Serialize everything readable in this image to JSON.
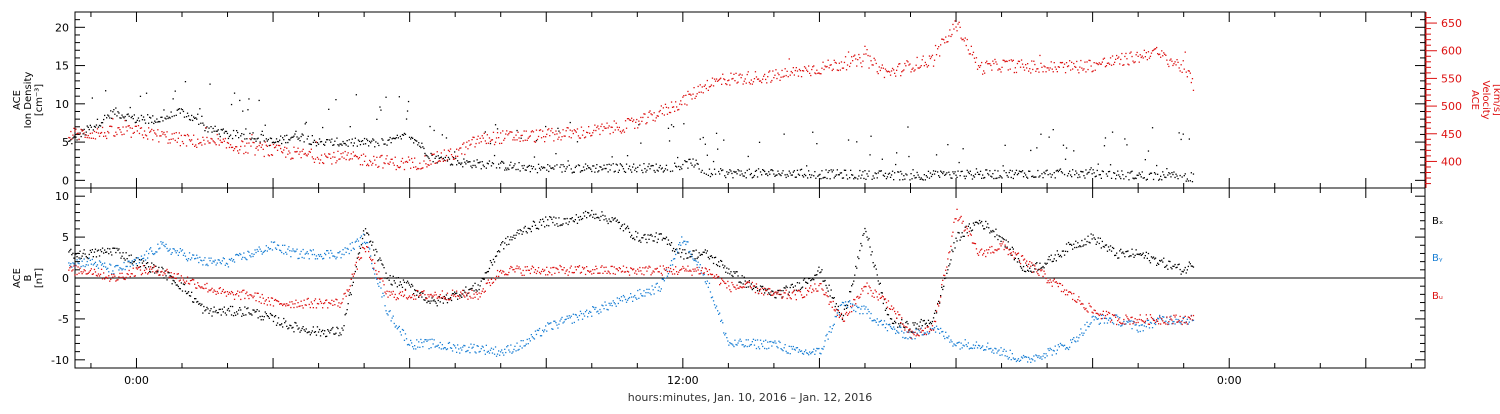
{
  "chart_data": [
    {
      "type": "scatter",
      "panel": "top",
      "left_axis": {
        "label_lines": [
          "ACE",
          "Ion Density",
          "[cm⁻³]"
        ],
        "range": [
          -1,
          22
        ],
        "ticks": [
          0,
          5,
          10,
          15,
          20
        ],
        "color": "#000000"
      },
      "right_axis": {
        "label_lines": [
          "ACE",
          "Velocity",
          "[km/s]"
        ],
        "range": [
          352,
          670
        ],
        "ticks": [
          400,
          450,
          500,
          550,
          600,
          650
        ],
        "color": "#dd1111"
      },
      "series": [
        {
          "name": "Ion Density",
          "axis": "left",
          "color": "#000000",
          "x_hours": [
            -1.5,
            -0.5,
            0,
            0.5,
            1,
            1.5,
            2,
            2.5,
            3,
            3.5,
            4,
            4.5,
            5,
            5.5,
            6,
            6.5,
            7,
            7.5,
            8,
            8.5,
            9,
            10,
            11,
            11.5,
            12,
            12.2,
            12.5,
            13,
            14,
            15,
            16,
            17,
            18,
            19,
            20,
            21,
            22,
            23,
            23.2
          ],
          "values": [
            5,
            9,
            8,
            8,
            9,
            7,
            6,
            6,
            5,
            6,
            5,
            5,
            5,
            5,
            6,
            3,
            2.5,
            2.2,
            2,
            1.8,
            1.6,
            1.7,
            1.7,
            1.7,
            2,
            2.5,
            1,
            1,
            1,
            0.9,
            0.8,
            0.7,
            0.8,
            0.9,
            1,
            0.9,
            0.7,
            0.6,
            0.5
          ]
        },
        {
          "name": "Velocity",
          "axis": "right",
          "color": "#dd1111",
          "x_hours": [
            -1.5,
            -1,
            0,
            1,
            2,
            3,
            4,
            5,
            6,
            7,
            7.5,
            8,
            9,
            10,
            11,
            11.5,
            12,
            12.5,
            13,
            14,
            15,
            16,
            16.5,
            17,
            17.5,
            18,
            18.5,
            19,
            20,
            21,
            22,
            22.3,
            23,
            23.2
          ],
          "values": [
            450,
            452,
            455,
            440,
            430,
            420,
            410,
            405,
            395,
            415,
            440,
            445,
            448,
            455,
            470,
            490,
            510,
            540,
            550,
            555,
            570,
            585,
            560,
            575,
            585,
            650,
            570,
            575,
            570,
            575,
            590,
            600,
            570,
            540
          ]
        }
      ]
    },
    {
      "type": "scatter",
      "panel": "bottom",
      "left_axis": {
        "label_lines": [
          "ACE",
          "B",
          "[nT]"
        ],
        "range": [
          -11,
          11
        ],
        "ticks": [
          -10,
          -5,
          0,
          5,
          10
        ],
        "color": "#000000"
      },
      "series": [
        {
          "name": "Bₓ",
          "color": "#000000",
          "x_hours": [
            -1.5,
            -1,
            -0.5,
            0,
            0.5,
            1,
            1.5,
            2,
            2.5,
            3,
            3.5,
            4,
            4.5,
            5,
            5.5,
            6,
            6.5,
            7,
            7.5,
            8,
            8.5,
            9,
            9.5,
            10,
            10.5,
            11,
            11.5,
            12,
            12.5,
            13,
            13.5,
            14,
            14.5,
            15,
            15.5,
            16,
            16.5,
            17,
            17.5,
            18,
            18.5,
            19,
            19.5,
            20,
            20.5,
            21,
            21.5,
            22,
            22.5,
            23,
            23.2
          ],
          "values": [
            3,
            3,
            3.5,
            2,
            1,
            -1,
            -4,
            -4,
            -4,
            -5,
            -6,
            -6.5,
            -6.5,
            6,
            0,
            -1,
            -3,
            -2,
            -1,
            4,
            6,
            7,
            7,
            8,
            7,
            5,
            5,
            3,
            3,
            1,
            -1,
            -2,
            -1,
            1,
            -5,
            6,
            -5,
            -6,
            -5,
            5,
            7,
            5,
            1,
            2,
            4,
            5,
            3,
            3,
            2,
            1,
            2
          ]
        },
        {
          "name": "Bᵧ",
          "color": "#1a7fd4",
          "x_hours": [
            -1.5,
            -1,
            -0.5,
            0,
            0.5,
            1,
            1.5,
            2,
            2.5,
            3,
            3.5,
            4,
            4.5,
            5,
            5.5,
            6,
            6.5,
            7,
            7.5,
            8,
            8.5,
            9,
            9.5,
            10,
            10.5,
            11,
            11.5,
            12,
            12.5,
            13,
            13.5,
            14,
            14.5,
            15,
            15.5,
            16,
            16.5,
            17,
            17.5,
            18,
            18.5,
            19,
            19.5,
            20,
            20.5,
            21,
            21.5,
            22,
            22.5,
            23,
            23.2
          ],
          "values": [
            2,
            2,
            1,
            2,
            4,
            3,
            2,
            2,
            3,
            4,
            3,
            3,
            3,
            5,
            -4,
            -8,
            -8,
            -8.5,
            -8.5,
            -9,
            -8,
            -6,
            -5,
            -4,
            -3,
            -2,
            -1,
            5,
            0,
            -8,
            -8,
            -8,
            -9,
            -9,
            -3,
            -4,
            -6,
            -7,
            -6,
            -8,
            -8,
            -9,
            -10,
            -9,
            -8,
            -5,
            -5,
            -6,
            -5,
            -5,
            -5
          ]
        },
        {
          "name": "Bᵤ",
          "color": "#dd1111",
          "x_hours": [
            -1.5,
            -1,
            -0.5,
            0,
            0.5,
            1,
            1.5,
            2,
            2.5,
            3,
            3.5,
            4,
            4.5,
            5,
            5.5,
            6,
            6.5,
            7,
            7.5,
            8,
            8.5,
            9,
            9.5,
            10,
            10.5,
            11,
            11.5,
            12,
            12.5,
            13,
            13.5,
            14,
            14.5,
            15,
            15.5,
            16,
            16.5,
            17,
            17.5,
            18,
            18.5,
            19,
            19.5,
            20,
            20.5,
            21,
            21.5,
            22,
            22.5,
            23,
            23.2
          ],
          "values": [
            1,
            1,
            0,
            1,
            1,
            0,
            -1,
            -2,
            -2,
            -3,
            -3,
            -3,
            -3,
            4,
            -2,
            -2,
            -2,
            -2,
            -2,
            1,
            1,
            1,
            1,
            1,
            1,
            1,
            1,
            1,
            1,
            -1,
            -1,
            -2,
            -2,
            -1,
            -5,
            -1,
            -3,
            -7,
            -6,
            8,
            3,
            4,
            2,
            0,
            -2,
            -4,
            -5,
            -5,
            -5,
            -5,
            -5
          ]
        }
      ],
      "legend": [
        "Bₓ",
        "Bᵧ",
        "Bᵤ"
      ]
    }
  ],
  "x_axis": {
    "range_hours": [
      -1.35,
      28.3
    ],
    "tick_labels": [
      "0:00",
      "12:00",
      "0:00"
    ],
    "tick_hours": [
      0,
      12,
      24
    ],
    "minor_step_hours": 1,
    "label": "hours:minutes, Jan. 10, 2016 – Jan. 12, 2016"
  }
}
